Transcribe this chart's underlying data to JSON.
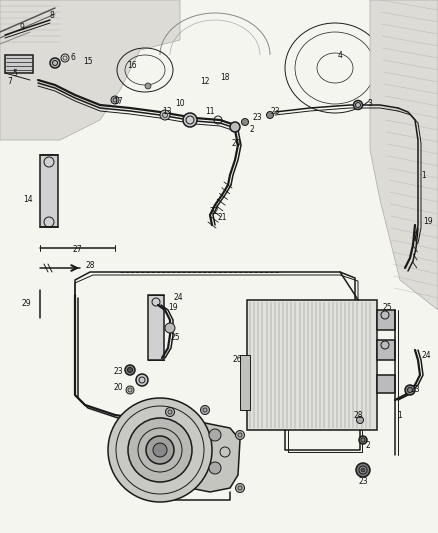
{
  "bg_color": "#f5f5f0",
  "line_color": "#1a1a1a",
  "fig_width": 4.38,
  "fig_height": 5.33,
  "dpi": 100,
  "upper_bg": "#e8e6e0",
  "structure_color": "#aaaaaa",
  "label_fs": 5.5,
  "label_color": "#111111"
}
